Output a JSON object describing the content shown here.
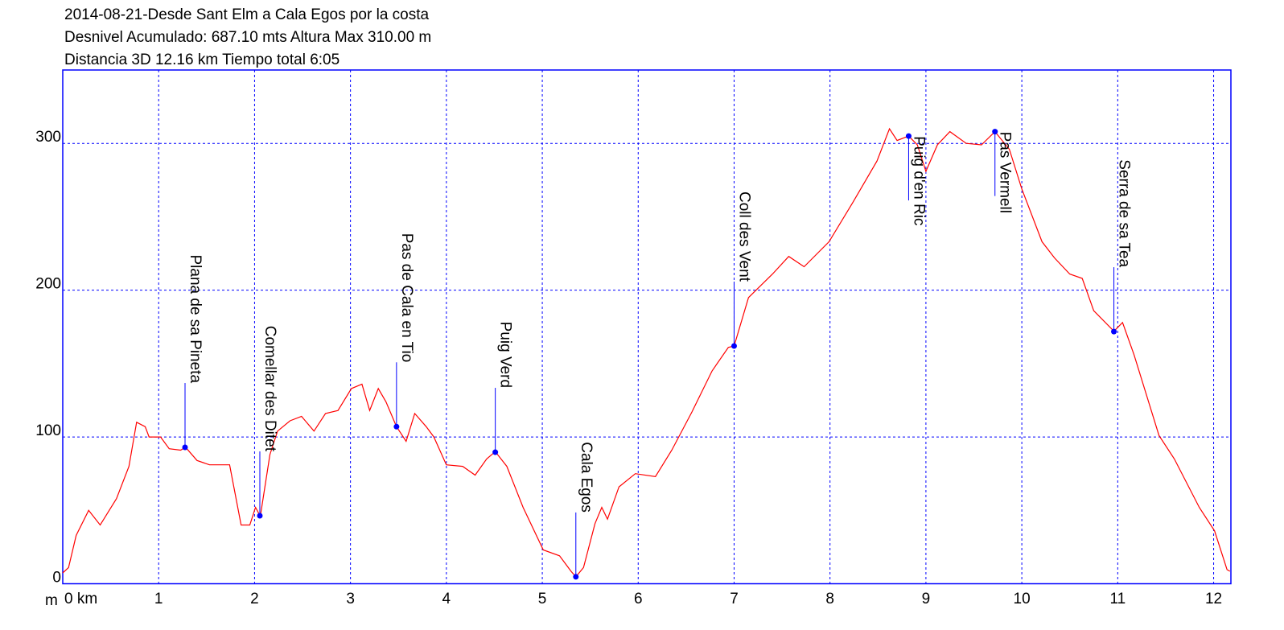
{
  "chart_data": {
    "type": "line",
    "title": "2014-08-21-Desde Sant Elm a Cala Egos por la costa",
    "subtitle": [
      "Desnivel Acumulado: 687.10 mts  Altura Max 310.00 m",
      "Distancia 3D 12.16 km  Tiempo total 6:05"
    ],
    "y_label": "m",
    "xlim": [
      0,
      12.18
    ],
    "ylim": [
      0,
      350
    ],
    "xticks": [
      {
        "value": 0,
        "label": "0 km"
      },
      1,
      2,
      3,
      4,
      5,
      6,
      7,
      8,
      9,
      10,
      11,
      12
    ],
    "yticks": [
      0,
      100,
      200,
      300
    ],
    "grid": true,
    "grid_color": "#0000ff",
    "series": [
      {
        "color": "#ff0000",
        "x": [
          0,
          0.06,
          0.14,
          0.27,
          0.39,
          0.56,
          0.69,
          0.77,
          0.86,
          0.9,
          1.02,
          1.11,
          1.23,
          1.28,
          1.4,
          1.53,
          1.74,
          1.86,
          1.95,
          2.01,
          2.06,
          2.16,
          2.24,
          2.37,
          2.49,
          2.62,
          2.74,
          2.87,
          3.01,
          3.12,
          3.2,
          3.29,
          3.37,
          3.48,
          3.58,
          3.67,
          3.79,
          3.87,
          4.0,
          4.17,
          4.3,
          4.42,
          4.51,
          4.63,
          4.8,
          5.01,
          5.18,
          5.3,
          5.35,
          5.43,
          5.55,
          5.62,
          5.68,
          5.8,
          5.97,
          6.18,
          6.35,
          6.56,
          6.77,
          6.94,
          7.0,
          7.15,
          7.4,
          7.57,
          7.73,
          7.99,
          8.24,
          8.49,
          8.62,
          8.7,
          8.82,
          8.91,
          9.0,
          9.12,
          9.25,
          9.42,
          9.58,
          9.72,
          9.87,
          10.0,
          10.21,
          10.34,
          10.5,
          10.63,
          10.75,
          10.96,
          11.05,
          11.17,
          11.43,
          11.59,
          11.85,
          12.01,
          12.14,
          12.17
        ],
        "values": [
          7.4,
          11,
          33,
          50,
          40,
          58,
          80,
          110,
          107,
          100,
          100,
          92,
          91,
          93,
          84,
          81,
          81,
          40,
          40,
          52,
          46,
          88,
          104,
          111,
          114,
          104,
          116,
          118,
          133,
          136,
          118,
          133,
          124,
          107,
          97,
          116,
          107,
          100,
          81,
          80,
          74,
          85,
          90,
          80,
          52,
          23,
          19,
          8.5,
          4.7,
          11,
          41,
          52,
          44,
          66,
          75,
          73,
          91,
          117,
          145,
          161,
          162,
          195,
          211,
          223,
          216,
          233,
          260,
          288,
          310,
          302,
          305,
          299,
          281,
          299,
          308,
          300,
          299,
          308,
          296,
          269,
          233,
          222,
          211,
          208,
          186,
          172,
          178,
          156,
          101,
          85,
          52,
          36,
          9.6,
          8.5
        ]
      }
    ],
    "waypoints": {
      "color": "#0000ff",
      "names": [
        "Plana de sa Pineta",
        "Comellar des Ditet",
        "Pas de Cala en Tio",
        "Puig Verd",
        "Cala Egos",
        "Coll des Vent",
        "Puig d'en Ric",
        "Pas Vermell",
        "Serra de sa Tea"
      ],
      "x": [
        1.275,
        2.055,
        3.48,
        4.51,
        5.35,
        7.0,
        8.82,
        9.72,
        10.96
      ],
      "values": [
        92.9,
        46.3,
        107,
        89.6,
        4.7,
        162,
        305,
        308,
        171.8
      ]
    }
  }
}
